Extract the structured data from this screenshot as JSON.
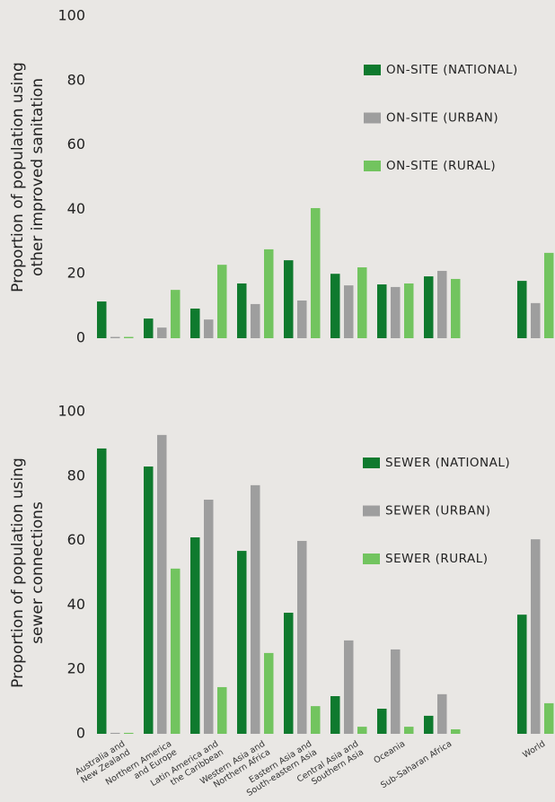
{
  "chart_data": [
    {
      "type": "bar",
      "y_label": [
        "Proportion of population using",
        "other improved sanitation"
      ],
      "ylim": [
        0,
        100
      ],
      "yticks": [
        0,
        20,
        40,
        60,
        80,
        100
      ],
      "series": [
        {
          "name": "ON-SITE (NATIONAL)",
          "color": "#0f7a2e",
          "values": [
            11.4,
            6.1,
            9.2,
            17,
            24.2,
            20,
            16.7,
            19.2,
            null,
            17.8
          ]
        },
        {
          "name": "ON-SITE (URBAN)",
          "color": "#9e9e9e",
          "values": [
            0.4,
            3.3,
            5.8,
            10.6,
            11.7,
            16.4,
            15.9,
            20.9,
            null,
            10.9
          ]
        },
        {
          "name": "ON-SITE (RURAL)",
          "color": "#72c45f",
          "values": [
            0.4,
            15,
            22.8,
            27.6,
            40.4,
            22,
            17,
            18.4,
            null,
            26.5
          ]
        }
      ]
    },
    {
      "type": "bar",
      "y_label": [
        "Proportion of population using",
        "sewer connections"
      ],
      "ylim": [
        0,
        100
      ],
      "yticks": [
        0,
        20,
        40,
        60,
        80,
        100
      ],
      "categories": [
        "Australia and\nNew Zealand",
        "Northern America\nand Europe",
        "Latin America and\nthe Caribbean",
        "Western Asia and\nNorthern Africa",
        "Eastern Asia and\nSouth-eastern Asia",
        "Central Asia and\nSouthern Asia",
        "Oceania",
        "Sub-Saharan Africa",
        null,
        "World"
      ],
      "series": [
        {
          "name": "SEWER (NATIONAL)",
          "color": "#0f7a2e",
          "values": [
            88.6,
            83,
            61,
            56.8,
            37.6,
            11.7,
            7.8,
            5.6,
            null,
            37
          ]
        },
        {
          "name": "SEWER (URBAN)",
          "color": "#9e9e9e",
          "values": [
            0.3,
            92.8,
            72.7,
            77.2,
            59.9,
            29,
            26.2,
            12.3,
            null,
            60.4
          ]
        },
        {
          "name": "SEWER (RURAL)",
          "color": "#72c45f",
          "values": [
            0.3,
            51.3,
            14.5,
            25.1,
            8.6,
            2.2,
            2.2,
            1.4,
            null,
            9.5
          ]
        }
      ]
    }
  ]
}
